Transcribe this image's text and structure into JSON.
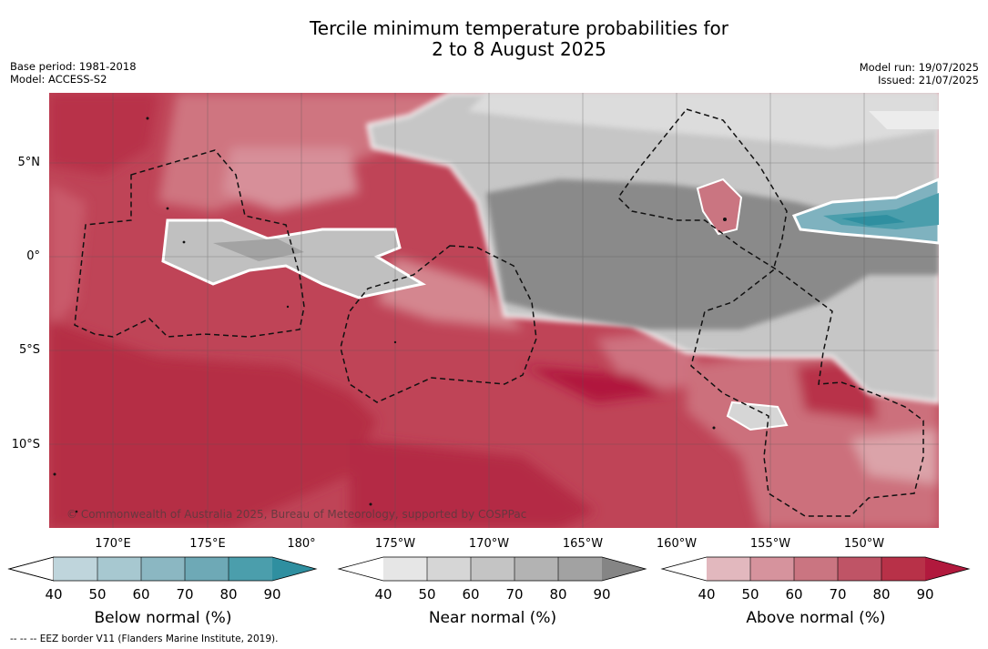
{
  "header": {
    "title_line1": "Tercile minimum temperature probabilities for",
    "title_line2": "2 to 8 August 2025",
    "base_period": "Base period: 1981-2018",
    "model": "Model: ACCESS-S2",
    "model_run": "Model run: 19/07/2025",
    "issued": "Issued: 21/07/2025"
  },
  "map": {
    "lat_labels": [
      "5°N",
      "0°",
      "5°S",
      "10°S"
    ],
    "lon_labels": [
      "170°E",
      "175°E",
      "180°",
      "175°W",
      "170°W",
      "165°W",
      "160°W",
      "155°W",
      "150°W"
    ],
    "copyright": "© Commonwealth of Australia 2025, Bureau of Meteorology, supported by COSPPac"
  },
  "colorbars": [
    {
      "name": "Below normal (%)",
      "ticks": [
        "40",
        "50",
        "60",
        "70",
        "80",
        "90"
      ],
      "colors": [
        "#bfd5dc",
        "#a7c8d0",
        "#8bb7c2",
        "#6ea9b6",
        "#4b9eac",
        "#2f8fa0"
      ]
    },
    {
      "name": "Near normal (%)",
      "ticks": [
        "40",
        "50",
        "60",
        "70",
        "80",
        "90"
      ],
      "colors": [
        "#e6e6e6",
        "#d6d6d6",
        "#c4c4c4",
        "#b3b3b3",
        "#a2a2a2",
        "#858585"
      ]
    },
    {
      "name": "Above normal (%)",
      "ticks": [
        "40",
        "50",
        "60",
        "70",
        "80",
        "90"
      ],
      "colors": [
        "#e2b8be",
        "#d6939d",
        "#ca7581",
        "#bf5466",
        "#b83148",
        "#b1193d"
      ]
    }
  ],
  "footnote": "--  --  -- EEZ border V11 (Flanders Marine Institute, 2019)."
}
